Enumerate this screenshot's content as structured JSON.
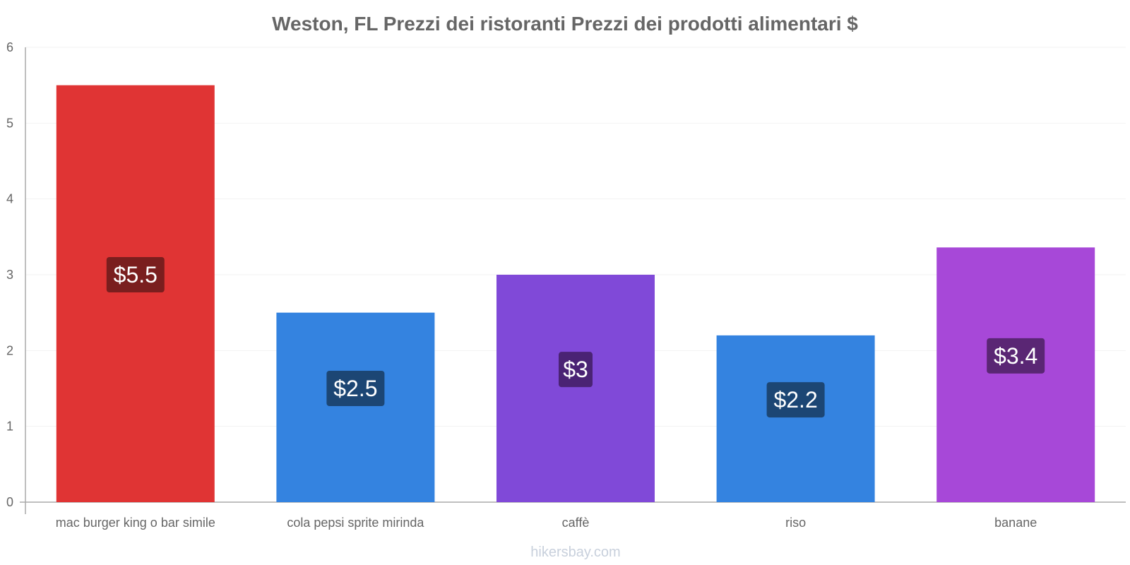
{
  "chart_data": {
    "type": "bar",
    "title": "Weston, FL Prezzi dei ristoranti Prezzi dei prodotti alimentari $",
    "categories": [
      "mac burger king o bar simile",
      "cola pepsi sprite mirinda",
      "caffè",
      "riso",
      "banane"
    ],
    "values": [
      5.5,
      2.5,
      3.0,
      2.2,
      3.36
    ],
    "data_labels": [
      "$5.5",
      "$2.5",
      "$3",
      "$2.2",
      "$3.4"
    ],
    "colors": [
      "#e03434",
      "#3483e0",
      "#8049d8",
      "#3483e0",
      "#a748d8"
    ],
    "label_bg_colors": [
      "#7a1e1e",
      "#1c4674",
      "#4a2374",
      "#1c4674",
      "#5a2674"
    ],
    "ylim": [
      0,
      6
    ],
    "yticks": [
      "0",
      "1",
      "2",
      "3",
      "4",
      "5",
      "6"
    ],
    "xlabel": "",
    "ylabel": "",
    "grid": true
  },
  "watermark": "hikersbay.com"
}
